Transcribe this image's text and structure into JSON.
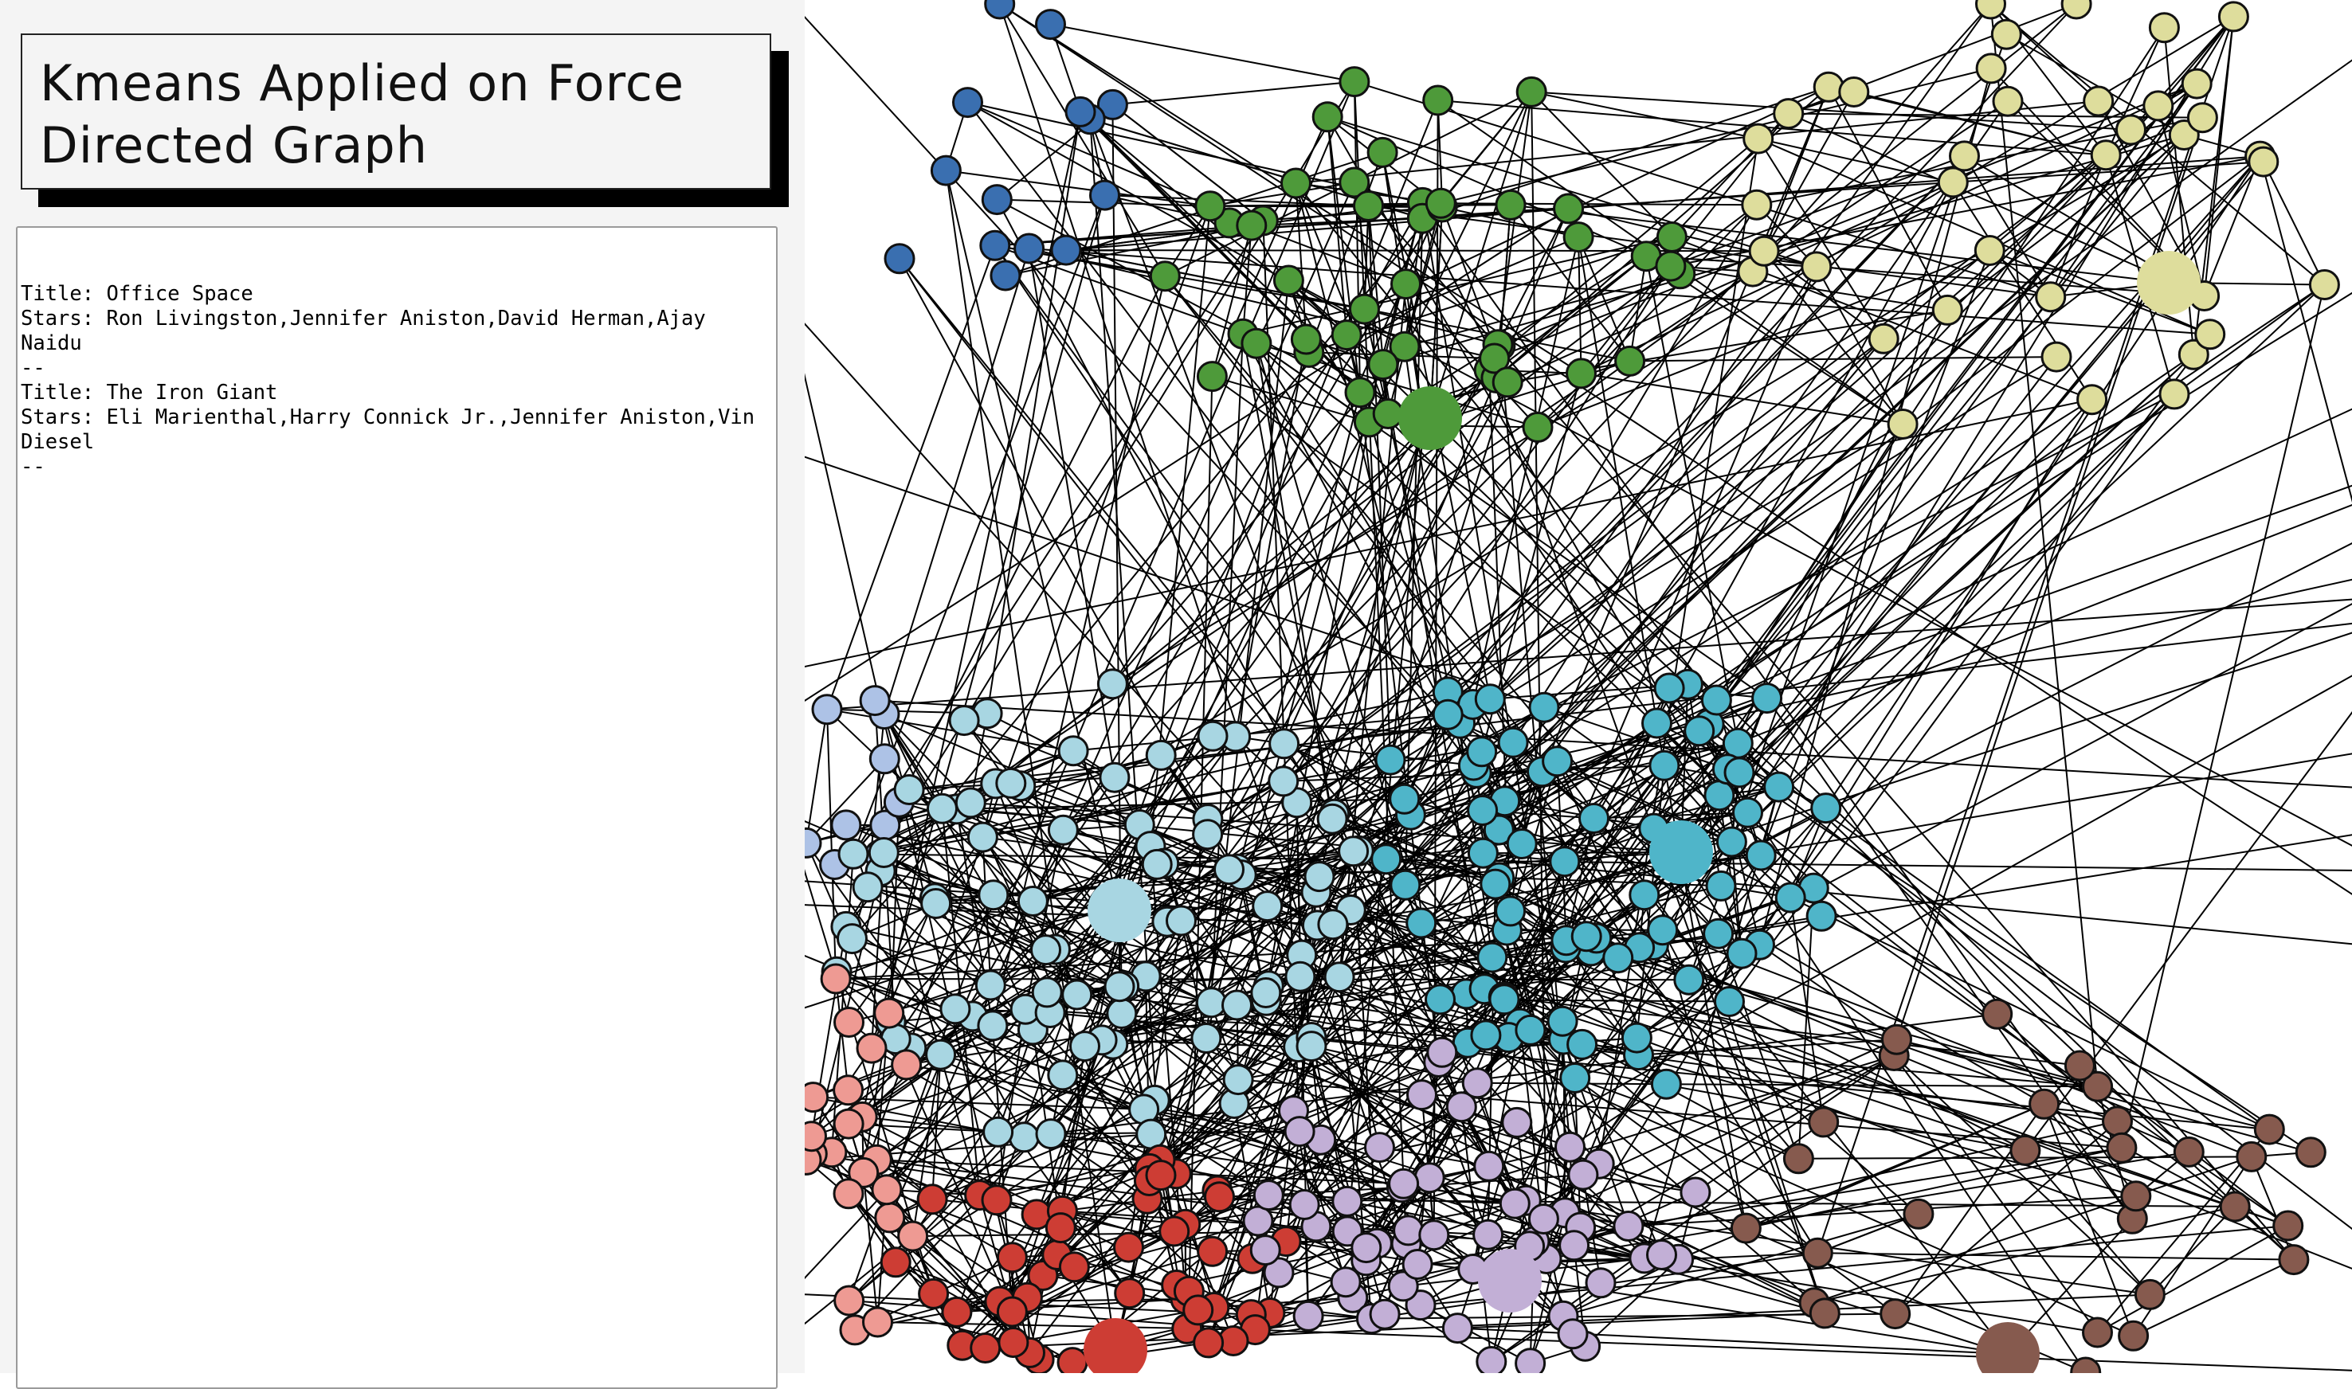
{
  "page": {
    "title": "Kmeans Applied on Force Directed Graph"
  },
  "details": {
    "films": [
      {
        "title_line": "Title: Office Space",
        "stars_line": "Stars: Ron Livingston,Jennifer Aniston,David Herman,Ajay Naidu",
        "separator": "--"
      },
      {
        "title_line": "Title: The Iron Giant",
        "stars_line": "Stars: Eli Marienthal,Harry Connick Jr.,Jennifer Aniston,Vin Diesel",
        "separator": "--"
      }
    ]
  },
  "graph": {
    "cluster_colors": {
      "blue": "#3a6fb0",
      "green": "#4e9a3a",
      "khaki": "#dedd9c",
      "lavender": "#adc2e6",
      "light_blue": "#a8d6e2",
      "cyan": "#4fb5c9",
      "pink": "#ee9a93",
      "red": "#cd3d34",
      "purple": "#c2afd6",
      "brown": "#865a4e"
    }
  }
}
